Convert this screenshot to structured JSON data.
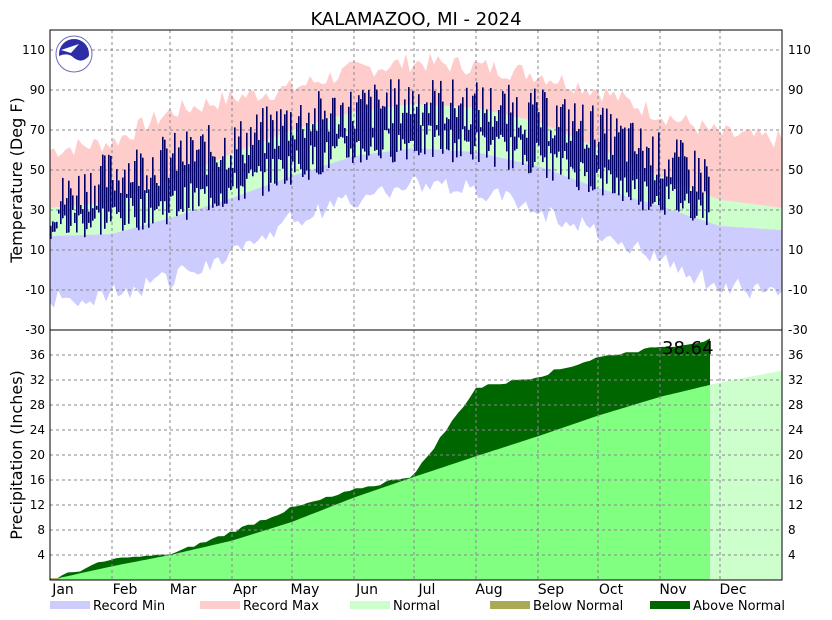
{
  "chart_data": [
    {
      "type": "area",
      "title": "KALAMAZOO, MI - 2024",
      "ylabel": "Temperature (Deg F)",
      "ylim": [
        -30,
        120
      ],
      "yticks": [
        110,
        90,
        70,
        50,
        30,
        10,
        -10,
        -30
      ],
      "grid": true,
      "months": [
        "Jan",
        "Feb",
        "Mar",
        "Apr",
        "May",
        "Jun",
        "Jul",
        "Aug",
        "Sep",
        "Oct",
        "Nov",
        "Dec"
      ],
      "normal_high_monthly": [
        31,
        34,
        45,
        58,
        70,
        79,
        83,
        81,
        74,
        61,
        47,
        35,
        31
      ],
      "normal_low_monthly": [
        17,
        18,
        26,
        36,
        47,
        57,
        61,
        59,
        52,
        41,
        32,
        22,
        20
      ],
      "record_max_monthly": [
        60,
        64,
        79,
        86,
        91,
        100,
        104,
        102,
        98,
        90,
        78,
        68,
        65
      ],
      "record_min_monthly": [
        -15,
        -12,
        -5,
        10,
        25,
        35,
        43,
        40,
        30,
        20,
        5,
        -8,
        -12
      ],
      "observed_high_monthly": [
        33,
        48,
        56,
        62,
        75,
        80,
        85,
        82,
        78,
        70,
        56,
        45
      ],
      "observed_low_monthly": [
        22,
        26,
        32,
        40,
        52,
        60,
        64,
        62,
        56,
        45,
        36,
        30
      ],
      "observed_through_day": 330
    },
    {
      "type": "area",
      "ylabel": "Precipitation (Inches)",
      "ylim": [
        0,
        40
      ],
      "yticks": [
        36,
        32,
        28,
        24,
        20,
        16,
        12,
        8,
        4
      ],
      "grid": true,
      "total_label": "38.64",
      "observed_through_day": 330,
      "normal_cumulative_monthly": [
        0,
        2.2,
        4.0,
        6.3,
        9.3,
        13.2,
        16.5,
        19.8,
        23.0,
        26.3,
        29.3,
        31.6,
        33.5
      ],
      "observed_cumulative_monthly": [
        0,
        3.3,
        4.0,
        7.7,
        11.5,
        14.3,
        16.8,
        30.7,
        32.6,
        35.6,
        37.2,
        38.64
      ]
    }
  ],
  "legend": [
    {
      "label": "Record Min",
      "color": "#ccccff"
    },
    {
      "label": "Record Max",
      "color": "#ffcccc"
    },
    {
      "label": "Normal",
      "color": "#ccffcc"
    },
    {
      "label": "Below Normal",
      "color": "#aaaa55"
    },
    {
      "label": "Above Normal",
      "color": "#006600"
    }
  ],
  "colors": {
    "observed_temp": "#000066",
    "normal_precip": "#80ff80",
    "normal_precip_future": "#ccffcc"
  },
  "icon": "noaa-logo-icon"
}
